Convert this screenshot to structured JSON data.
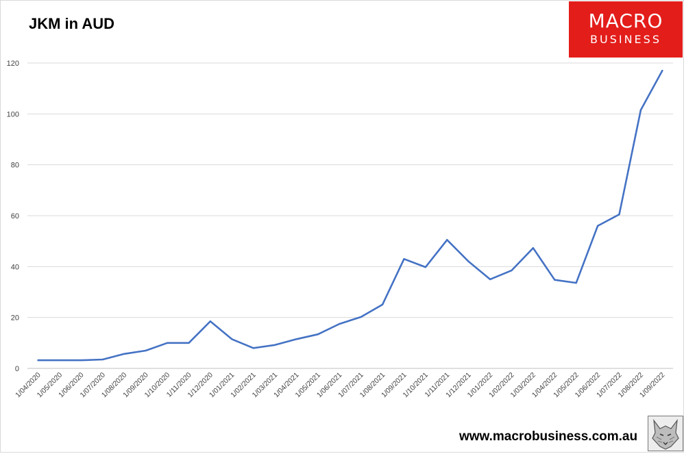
{
  "chart_data": {
    "type": "line",
    "title": "JKM in AUD",
    "xlabel": "",
    "ylabel": "",
    "ylim": [
      0,
      120
    ],
    "yticks": [
      0,
      20,
      40,
      60,
      80,
      100,
      120
    ],
    "grid": true,
    "legend": "none",
    "line_color": "#4472c4",
    "categories": [
      "1/04/2020",
      "1/05/2020",
      "1/06/2020",
      "1/07/2020",
      "1/08/2020",
      "1/09/2020",
      "1/10/2020",
      "1/11/2020",
      "1/12/2020",
      "1/01/2021",
      "1/02/2021",
      "1/03/2021",
      "1/04/2021",
      "1/05/2021",
      "1/06/2021",
      "1/07/2021",
      "1/08/2021",
      "1/09/2021",
      "1/10/2021",
      "1/11/2021",
      "1/12/2021",
      "1/01/2022",
      "1/02/2022",
      "1/03/2022",
      "1/04/2022",
      "1/05/2022",
      "1/06/2022",
      "1/07/2022",
      "1/08/2022",
      "1/09/2022"
    ],
    "series": [
      {
        "values": [
          3.2,
          3.2,
          3.2,
          3.5,
          5.7,
          7.0,
          10.0,
          10.0,
          18.5,
          11.5,
          8.0,
          9.2,
          11.5,
          13.4,
          17.5,
          20.2,
          25.1,
          43.0,
          39.8,
          50.5,
          42.0,
          35.0,
          38.5,
          47.3,
          34.8,
          33.6,
          56.0,
          60.5,
          101.5,
          117.0
        ]
      }
    ]
  },
  "logo": {
    "line1": "MACRO",
    "line2": "BUSINESS",
    "color": "#e31d1a"
  },
  "footer": {
    "website": "www.macrobusiness.com.au"
  },
  "wolf_logo": {
    "icon": "wolf-icon"
  }
}
